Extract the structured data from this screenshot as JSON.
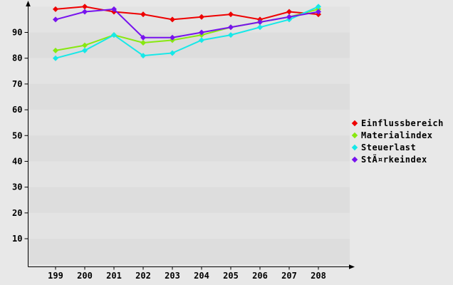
{
  "chart_data": {
    "type": "line",
    "title": "",
    "xlabel": "",
    "ylabel": "",
    "categories": [
      "199",
      "200",
      "201",
      "202",
      "203",
      "204",
      "205",
      "206",
      "207",
      "208"
    ],
    "series": [
      {
        "name": "Einflussbereich",
        "color": "#ee0000",
        "values": [
          99,
          100,
          98,
          97,
          95,
          96,
          97,
          95,
          98,
          97
        ]
      },
      {
        "name": "Materialindex",
        "color": "#88e811",
        "values": [
          83,
          85,
          89,
          86,
          87,
          89,
          92,
          94,
          96,
          99
        ]
      },
      {
        "name": "Steuerlast",
        "color": "#16e8e8",
        "values": [
          80,
          83,
          89,
          81,
          82,
          87,
          89,
          92,
          95,
          100
        ]
      },
      {
        "name": "StÃ¤rkeindex",
        "color": "#7713ee",
        "values": [
          95,
          98,
          99,
          88,
          88,
          90,
          92,
          94,
          96,
          98
        ]
      }
    ],
    "ylim": [
      0,
      100
    ],
    "yticks": [
      10,
      20,
      30,
      40,
      50,
      60,
      70,
      80,
      90
    ],
    "legend_position": "right",
    "grid": "horizontal-bands",
    "band_colors": [
      "#e3e3e3",
      "#dddddd"
    ],
    "page_background": "#e8e8e8",
    "axis_color": "#000000",
    "marker": "diamond"
  }
}
